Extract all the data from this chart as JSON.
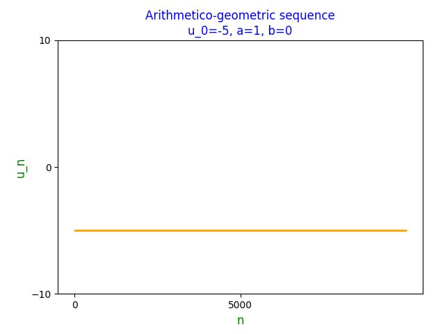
{
  "title_line1": "Arithmetico-geometric sequence",
  "title_line2": "u_0=-5, a=1, b=0",
  "title_color": "blue",
  "xlabel": "n",
  "ylabel": "u_n",
  "xlabel_color": "green",
  "ylabel_color": "green",
  "u0": -5,
  "a": 1,
  "b": 0,
  "n_points": 10001,
  "dot_color": "orange",
  "dot_size": 1,
  "xlim": [
    -500,
    10500
  ],
  "ylim": [
    -10,
    10
  ],
  "yticks": [
    -10,
    0,
    10
  ],
  "xticks": [
    0,
    5000
  ],
  "bg_color": "white",
  "figsize": [
    6.4,
    4.8
  ],
  "dpi": 100
}
